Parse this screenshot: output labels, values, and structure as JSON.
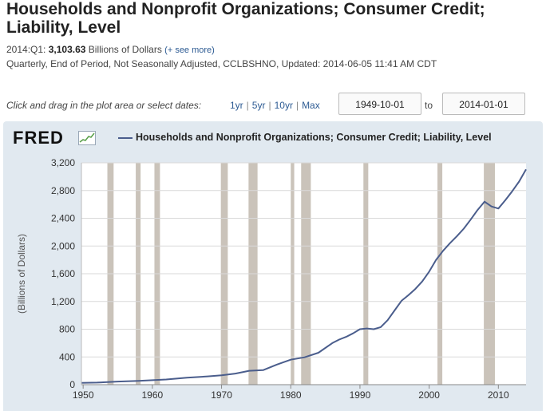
{
  "header": {
    "title": "Households and Nonprofit Organizations; Consumer Credit; Liability, Level",
    "latest_period": "2014:Q1:",
    "latest_value": "3,103.63",
    "latest_units": "Billions of Dollars",
    "see_more": "(+ see more)",
    "details": "Quarterly, End of Period, Not Seasonally Adjusted, CCLBSHNO, Updated: 2014-06-05 11:41 AM CDT"
  },
  "range": {
    "hint": "Click and drag in the plot area or select dates:",
    "links": [
      "1yr",
      "5yr",
      "10yr",
      "Max"
    ],
    "start_date": "1949-10-01",
    "to": "to",
    "end_date": "2014-01-01"
  },
  "logo": {
    "text": "FRED"
  },
  "colors": {
    "line": "#4a5d8c",
    "recession": "#cac3ba",
    "panel": "#e1e9f0",
    "plot_bg": "#ffffff"
  },
  "chart_data": {
    "type": "line",
    "title": "Households and Nonprofit Organizations; Consumer Credit; Liability, Level",
    "xlabel": "",
    "ylabel": "(Billions of Dollars)",
    "xlim": [
      1949.75,
      2014.0
    ],
    "ylim": [
      0,
      3200
    ],
    "grid": true,
    "xticks": [
      1950,
      1960,
      1970,
      1980,
      1990,
      2000,
      2010
    ],
    "xtick_labels": [
      "1950",
      "1960",
      "1970",
      "1980",
      "1990",
      "2000",
      "2010"
    ],
    "yticks": [
      0,
      400,
      800,
      1200,
      1600,
      2000,
      2400,
      2800,
      3200
    ],
    "ytick_labels": [
      "0",
      "400",
      "800",
      "1,200",
      "1,600",
      "2,000",
      "2,400",
      "2,800",
      "3,200"
    ],
    "recessions": [
      [
        1953.5,
        1954.4
      ],
      [
        1957.6,
        1958.3
      ],
      [
        1960.3,
        1961.1
      ],
      [
        1969.9,
        1970.9
      ],
      [
        1973.9,
        1975.2
      ],
      [
        1980.0,
        1980.5
      ],
      [
        1981.5,
        1982.9
      ],
      [
        1990.5,
        1991.2
      ],
      [
        2001.2,
        2001.9
      ],
      [
        2007.9,
        2009.5
      ]
    ],
    "series": [
      {
        "name": "Households and Nonprofit Organizations; Consumer Credit; Liability, Level",
        "x": [
          1949.75,
          1952,
          1955,
          1958,
          1960,
          1962,
          1965,
          1968,
          1970,
          1972,
          1974,
          1976,
          1978,
          1980,
          1982,
          1984,
          1986,
          1987,
          1988,
          1989,
          1990,
          1991,
          1992,
          1993,
          1994,
          1995,
          1996,
          1997,
          1998,
          1999,
          2000,
          2001,
          2002,
          2003,
          2004,
          2005,
          2006,
          2007,
          2008,
          2009,
          2010,
          2011,
          2012,
          2013,
          2014.0
        ],
        "values": [
          25,
          30,
          45,
          55,
          65,
          75,
          100,
          120,
          135,
          160,
          200,
          210,
          290,
          360,
          395,
          460,
          600,
          650,
          690,
          740,
          800,
          810,
          800,
          830,
          930,
          1070,
          1210,
          1290,
          1380,
          1490,
          1630,
          1800,
          1930,
          2040,
          2140,
          2250,
          2380,
          2520,
          2640,
          2570,
          2540,
          2660,
          2790,
          2930,
          3104
        ]
      }
    ]
  }
}
